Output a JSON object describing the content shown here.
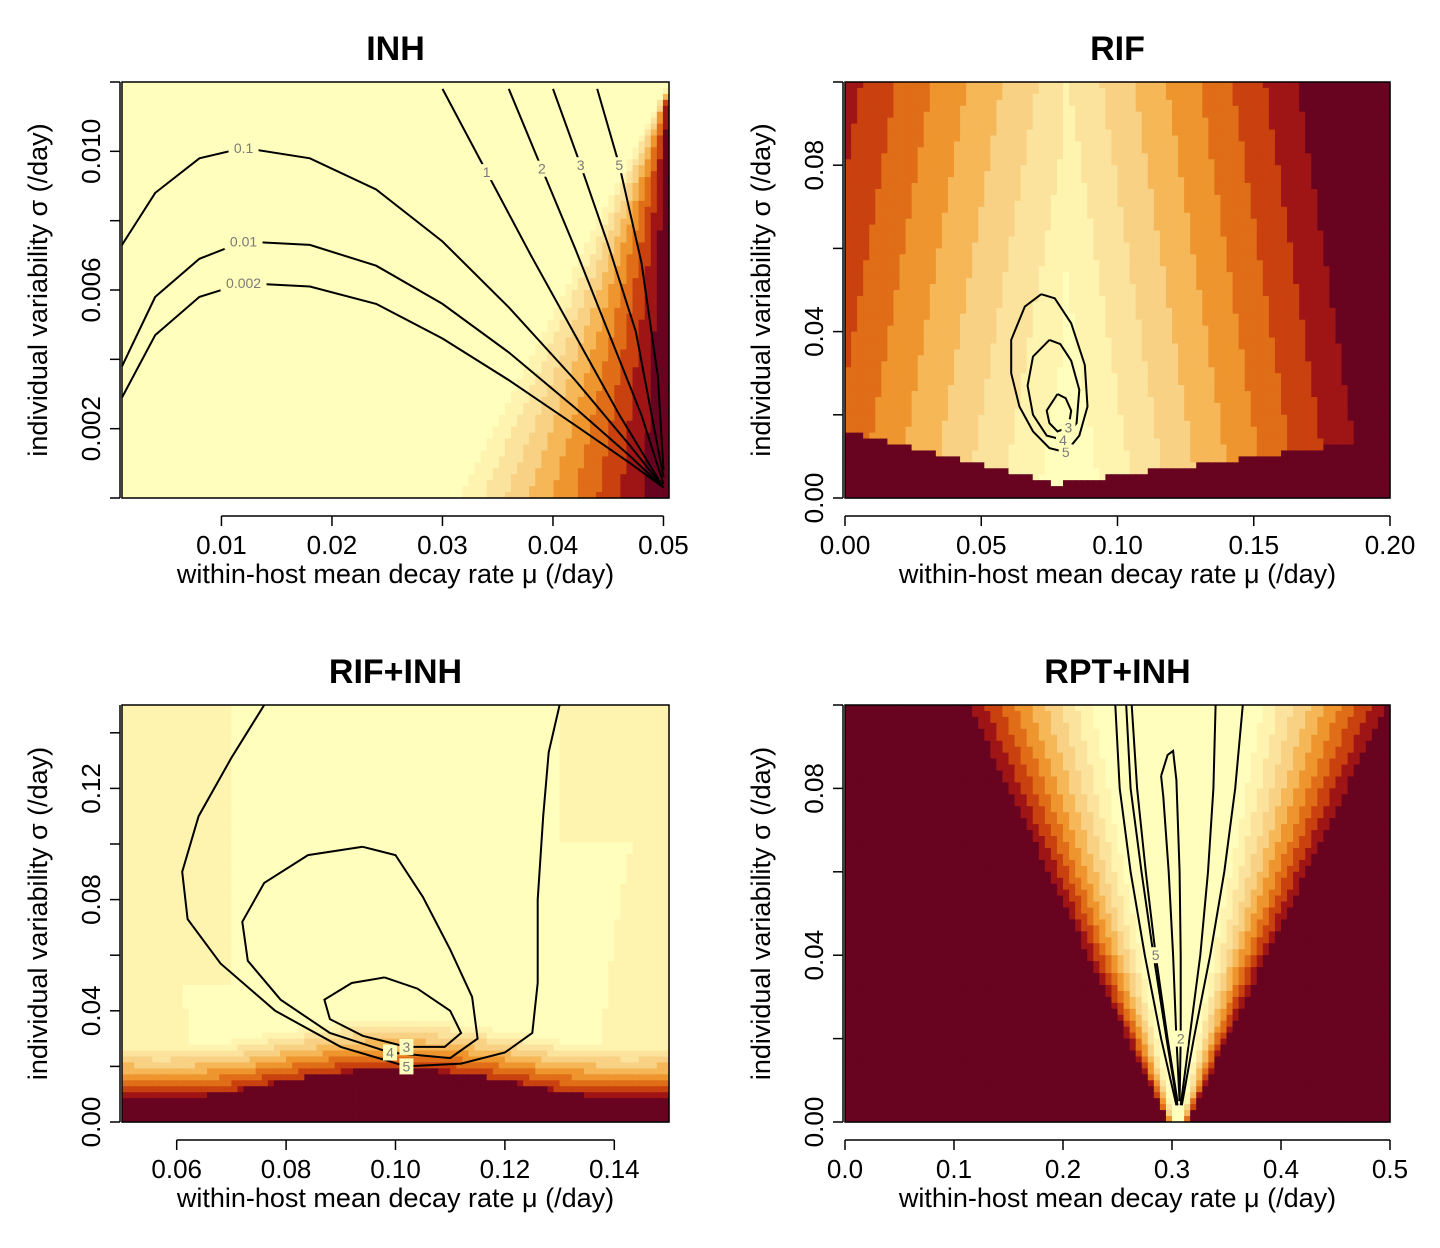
{
  "colors": {
    "palette": [
      "#FFFEBC",
      "#FEF4B0",
      "#FBE39D",
      "#F8D184",
      "#F5B757",
      "#EE952E",
      "#E06D17",
      "#C9410E",
      "#9F1414",
      "#680320"
    ]
  },
  "chart_data": [
    {
      "type": "heatmap",
      "title": "INH",
      "xlabel": "within-host mean decay rate μ (/day)",
      "ylabel": "individual variability σ (/day)",
      "xlim": [
        0.001,
        0.0505
      ],
      "ylim": [
        0.0,
        0.012
      ],
      "x_ticks": [
        "0.01",
        "0.02",
        "0.03",
        "0.04",
        "0.05"
      ],
      "y_ticks": [
        "0.002",
        "0.006",
        "0.010"
      ],
      "y_tick_values": [
        0.002,
        0.006,
        0.01
      ],
      "contours": [
        {
          "label": "0.002",
          "points": [
            [
              0.001,
              0.0029
            ],
            [
              0.004,
              0.0047
            ],
            [
              0.008,
              0.0058
            ],
            [
              0.012,
              0.0062
            ],
            [
              0.018,
              0.0061
            ],
            [
              0.024,
              0.0056
            ],
            [
              0.03,
              0.0046
            ],
            [
              0.036,
              0.0034
            ],
            [
              0.042,
              0.0021
            ],
            [
              0.047,
              0.001
            ],
            [
              0.05,
              0.0003
            ]
          ]
        },
        {
          "label": "0.01",
          "points": [
            [
              0.001,
              0.0038
            ],
            [
              0.004,
              0.0058
            ],
            [
              0.008,
              0.0069
            ],
            [
              0.012,
              0.0074
            ],
            [
              0.018,
              0.0073
            ],
            [
              0.024,
              0.0067
            ],
            [
              0.03,
              0.0056
            ],
            [
              0.036,
              0.0042
            ],
            [
              0.042,
              0.0026
            ],
            [
              0.047,
              0.0012
            ],
            [
              0.05,
              0.0003
            ]
          ]
        },
        {
          "label": "0.1",
          "points": [
            [
              0.001,
              0.0073
            ],
            [
              0.004,
              0.0088
            ],
            [
              0.008,
              0.0098
            ],
            [
              0.012,
              0.0101
            ],
            [
              0.018,
              0.0098
            ],
            [
              0.024,
              0.0089
            ],
            [
              0.03,
              0.0074
            ],
            [
              0.036,
              0.0055
            ],
            [
              0.042,
              0.0034
            ],
            [
              0.047,
              0.0015
            ],
            [
              0.05,
              0.0003
            ]
          ]
        },
        {
          "label": "1",
          "points": [
            [
              0.03,
              0.0118
            ],
            [
              0.034,
              0.0094
            ],
            [
              0.038,
              0.007
            ],
            [
              0.042,
              0.0047
            ],
            [
              0.046,
              0.0024
            ],
            [
              0.05,
              0.0003
            ]
          ]
        },
        {
          "label": "2",
          "points": [
            [
              0.036,
              0.0118
            ],
            [
              0.039,
              0.0095
            ],
            [
              0.042,
              0.0072
            ],
            [
              0.045,
              0.0048
            ],
            [
              0.048,
              0.0024
            ],
            [
              0.05,
              0.0004
            ]
          ]
        },
        {
          "label": "3",
          "points": [
            [
              0.04,
              0.0118
            ],
            [
              0.0425,
              0.0096
            ],
            [
              0.045,
              0.0073
            ],
            [
              0.0475,
              0.0048
            ],
            [
              0.05,
              0.0006
            ]
          ]
        },
        {
          "label": "5",
          "points": [
            [
              0.044,
              0.0118
            ],
            [
              0.046,
              0.0096
            ],
            [
              0.048,
              0.0068
            ],
            [
              0.0495,
              0.0035
            ],
            [
              0.05,
              0.0008
            ]
          ]
        }
      ]
    },
    {
      "type": "heatmap",
      "title": "RIF",
      "xlabel": "within-host mean decay rate μ (/day)",
      "ylabel": "individual variability σ (/day)",
      "xlim": [
        0.0,
        0.2
      ],
      "ylim": [
        0.0,
        0.1
      ],
      "x_ticks": [
        "0.00",
        "0.05",
        "0.10",
        "0.15",
        "0.20"
      ],
      "y_ticks": [
        "0.00",
        "0.04",
        "0.08"
      ],
      "y_tick_values": [
        0.0,
        0.04,
        0.08
      ],
      "contours": [
        {
          "label": "5",
          "points": [
            [
              0.072,
              0.049
            ],
            [
              0.066,
              0.046
            ],
            [
              0.061,
              0.038
            ],
            [
              0.061,
              0.03
            ],
            [
              0.064,
              0.022
            ],
            [
              0.069,
              0.016
            ],
            [
              0.075,
              0.012
            ],
            [
              0.081,
              0.011
            ],
            [
              0.086,
              0.015
            ],
            [
              0.089,
              0.022
            ],
            [
              0.088,
              0.032
            ],
            [
              0.083,
              0.042
            ],
            [
              0.077,
              0.048
            ],
            [
              0.072,
              0.049
            ]
          ]
        },
        {
          "label": "4",
          "points": [
            [
              0.075,
              0.038
            ],
            [
              0.069,
              0.034
            ],
            [
              0.067,
              0.027
            ],
            [
              0.069,
              0.02
            ],
            [
              0.074,
              0.015
            ],
            [
              0.08,
              0.014
            ],
            [
              0.085,
              0.018
            ],
            [
              0.086,
              0.026
            ],
            [
              0.083,
              0.033
            ],
            [
              0.079,
              0.037
            ],
            [
              0.075,
              0.038
            ]
          ]
        },
        {
          "label": "3",
          "points": [
            [
              0.078,
              0.025
            ],
            [
              0.074,
              0.021
            ],
            [
              0.075,
              0.018
            ],
            [
              0.078,
              0.016
            ],
            [
              0.082,
              0.017
            ],
            [
              0.083,
              0.021
            ],
            [
              0.081,
              0.024
            ],
            [
              0.078,
              0.025
            ]
          ]
        }
      ]
    },
    {
      "type": "heatmap",
      "title": "RIF+INH",
      "xlabel": "within-host mean decay rate μ (/day)",
      "ylabel": "individual variability σ (/day)",
      "xlim": [
        0.05,
        0.15
      ],
      "ylim": [
        0.0,
        0.15
      ],
      "x_ticks": [
        "0.06",
        "0.08",
        "0.10",
        "0.12",
        "0.14"
      ],
      "y_ticks": [
        "0.00",
        "0.04",
        "0.08",
        "0.12"
      ],
      "y_tick_values": [
        0.0,
        0.04,
        0.08,
        0.12
      ],
      "contours": [
        {
          "label": "5",
          "points": [
            [
              0.076,
              0.15
            ],
            [
              0.07,
              0.131
            ],
            [
              0.064,
              0.11
            ],
            [
              0.061,
              0.09
            ],
            [
              0.062,
              0.073
            ],
            [
              0.068,
              0.057
            ],
            [
              0.078,
              0.04
            ],
            [
              0.09,
              0.027
            ],
            [
              0.102,
              0.02
            ],
            [
              0.112,
              0.021
            ],
            [
              0.12,
              0.025
            ],
            [
              0.125,
              0.032
            ],
            [
              0.126,
              0.05
            ],
            [
              0.126,
              0.08
            ],
            [
              0.127,
              0.11
            ],
            [
              0.128,
              0.133
            ],
            [
              0.13,
              0.15
            ]
          ]
        },
        {
          "label": "4",
          "points": [
            [
              0.094,
              0.099
            ],
            [
              0.084,
              0.096
            ],
            [
              0.076,
              0.086
            ],
            [
              0.072,
              0.072
            ],
            [
              0.073,
              0.058
            ],
            [
              0.079,
              0.044
            ],
            [
              0.088,
              0.032
            ],
            [
              0.099,
              0.025
            ],
            [
              0.11,
              0.023
            ],
            [
              0.115,
              0.03
            ],
            [
              0.114,
              0.045
            ],
            [
              0.11,
              0.062
            ],
            [
              0.105,
              0.081
            ],
            [
              0.1,
              0.096
            ],
            [
              0.094,
              0.099
            ]
          ]
        },
        {
          "label": "3",
          "points": [
            [
              0.098,
              0.052
            ],
            [
              0.092,
              0.05
            ],
            [
              0.087,
              0.044
            ],
            [
              0.088,
              0.037
            ],
            [
              0.094,
              0.031
            ],
            [
              0.102,
              0.027
            ],
            [
              0.109,
              0.027
            ],
            [
              0.112,
              0.032
            ],
            [
              0.11,
              0.04
            ],
            [
              0.104,
              0.048
            ],
            [
              0.098,
              0.052
            ]
          ]
        }
      ]
    },
    {
      "type": "heatmap",
      "title": "RPT+INH",
      "xlabel": "within-host mean decay rate μ (/day)",
      "ylabel": "individual variability σ (/day)",
      "xlim": [
        0.0,
        0.5
      ],
      "ylim": [
        0.0,
        0.1
      ],
      "x_ticks": [
        "0.0",
        "0.1",
        "0.2",
        "0.3",
        "0.4",
        "0.5"
      ],
      "y_ticks": [
        "0.00",
        "0.04",
        "0.08"
      ],
      "y_tick_values": [
        0.0,
        0.04,
        0.08
      ],
      "contours": [
        {
          "label": "",
          "points": [
            [
              0.248,
              0.1
            ],
            [
              0.252,
              0.08
            ],
            [
              0.262,
              0.06
            ],
            [
              0.275,
              0.04
            ],
            [
              0.29,
              0.02
            ],
            [
              0.304,
              0.004
            ]
          ]
        },
        {
          "label": "",
          "points": [
            [
              0.258,
              0.1
            ],
            [
              0.262,
              0.08
            ],
            [
              0.272,
              0.06
            ],
            [
              0.283,
              0.04
            ],
            [
              0.295,
              0.02
            ],
            [
              0.305,
              0.004
            ]
          ]
        },
        {
          "label": "",
          "points": [
            [
              0.34,
              0.1
            ],
            [
              0.338,
              0.08
            ],
            [
              0.333,
              0.06
            ],
            [
              0.326,
              0.04
            ],
            [
              0.316,
              0.02
            ],
            [
              0.308,
              0.004
            ]
          ]
        },
        {
          "label": "",
          "points": [
            [
              0.365,
              0.1
            ],
            [
              0.358,
              0.08
            ],
            [
              0.348,
              0.06
            ],
            [
              0.335,
              0.04
            ],
            [
              0.32,
              0.02
            ],
            [
              0.309,
              0.004
            ]
          ]
        },
        {
          "label": "5",
          "points": [
            [
              0.263,
              0.1
            ],
            [
              0.268,
              0.08
            ],
            [
              0.276,
              0.06
            ],
            [
              0.285,
              0.04
            ],
            [
              0.296,
              0.02
            ],
            [
              0.305,
              0.005
            ]
          ]
        },
        {
          "label": "2",
          "points": [
            [
              0.29,
              0.083
            ],
            [
              0.296,
              0.088
            ],
            [
              0.301,
              0.089
            ],
            [
              0.304,
              0.082
            ],
            [
              0.307,
              0.06
            ],
            [
              0.308,
              0.04
            ],
            [
              0.308,
              0.02
            ],
            [
              0.307,
              0.005
            ],
            [
              0.304,
              0.02
            ],
            [
              0.301,
              0.04
            ],
            [
              0.297,
              0.06
            ],
            [
              0.292,
              0.078
            ],
            [
              0.29,
              0.083
            ]
          ]
        }
      ]
    }
  ]
}
